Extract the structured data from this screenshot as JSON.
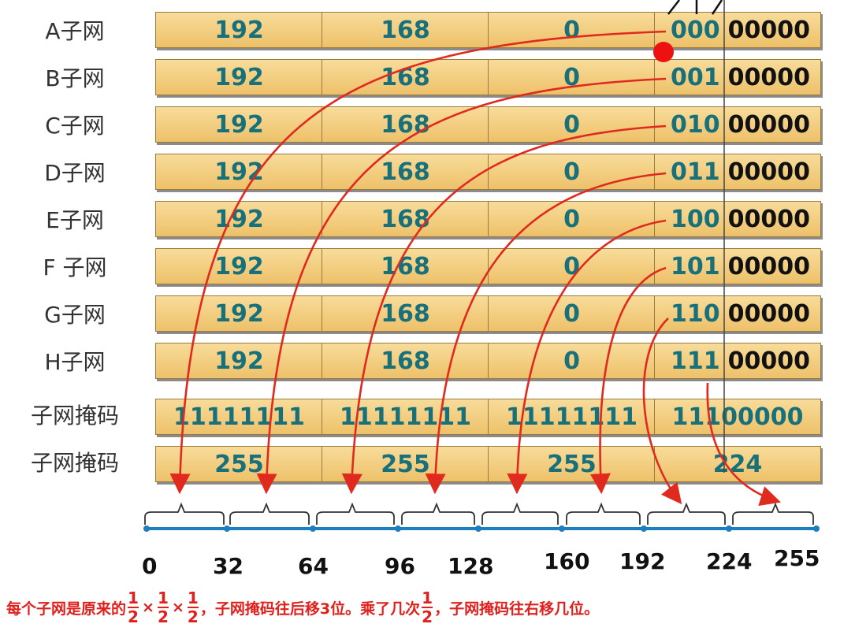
{
  "rows": [
    {
      "label": "A子网",
      "o1": "192",
      "o2": "168",
      "o3": "0",
      "bits": "000",
      "host": "00000"
    },
    {
      "label": "B子网",
      "o1": "192",
      "o2": "168",
      "o3": "0",
      "bits": "001",
      "host": "00000"
    },
    {
      "label": "C子网",
      "o1": "192",
      "o2": "168",
      "o3": "0",
      "bits": "010",
      "host": "00000"
    },
    {
      "label": "D子网",
      "o1": "192",
      "o2": "168",
      "o3": "0",
      "bits": "011",
      "host": "00000"
    },
    {
      "label": "E子网",
      "o1": "192",
      "o2": "168",
      "o3": "0",
      "bits": "100",
      "host": "00000"
    },
    {
      "label": "F 子网",
      "o1": "192",
      "o2": "168",
      "o3": "0",
      "bits": "101",
      "host": "00000"
    },
    {
      "label": "G子网",
      "o1": "192",
      "o2": "168",
      "o3": "0",
      "bits": "110",
      "host": "00000"
    },
    {
      "label": "H子网",
      "o1": "192",
      "o2": "168",
      "o3": "0",
      "bits": "111",
      "host": "00000"
    }
  ],
  "mask_binary": {
    "label": "子网掩码",
    "o1": "11111111",
    "o2": "11111111",
    "o3": "11111111",
    "o4": "11100000"
  },
  "mask_decimal": {
    "label": "子网掩码",
    "o1": "255",
    "o2": "255",
    "o3": "255",
    "o4": "224"
  },
  "number_line": {
    "ticks": [
      "0",
      "32",
      "64",
      "96",
      "128",
      "160",
      "192",
      "224",
      "255"
    ]
  },
  "caption": {
    "part1": "每个子网是原来的",
    "frac_num": "1",
    "frac_den": "2",
    "times": "×",
    "part2": "，子网掩码往后移3位。乘了几次",
    "part3": "，子网掩码往右移几位。"
  },
  "colors": {
    "cell": "#f3cc7a",
    "teal": "#17707a",
    "arrow": "#e02a1e",
    "line": "#1e7fc0"
  }
}
